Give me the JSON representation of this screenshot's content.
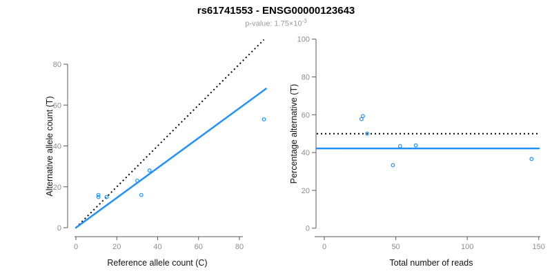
{
  "header": {
    "title": "rs61741553 - ENSG00000123643",
    "subtitle_prefix": "p-value: ",
    "subtitle_value": "1.75×10",
    "subtitle_exponent": "-3"
  },
  "colors": {
    "accent_blue": "#1E90FF",
    "line_black": "#000000",
    "tick_label_gray": "#8c8c8c",
    "axis_gray": "#5a5a5a",
    "subtitle_gray": "#9a9a9a"
  },
  "chart_data": [
    {
      "type": "scatter",
      "name": "allele-counts-scatter",
      "xlabel": "Reference allele count (C)",
      "ylabel": "Alternative allele count (T)",
      "xlim": [
        0,
        93
      ],
      "ylim": [
        0,
        93
      ],
      "xticks": [
        0,
        20,
        40,
        60,
        80
      ],
      "yticks": [
        0,
        20,
        40,
        60,
        80
      ],
      "grid": false,
      "legend": "none",
      "marker": "open-circle",
      "points": [
        [
          11,
          15
        ],
        [
          11,
          16
        ],
        [
          15,
          15
        ],
        [
          30,
          23
        ],
        [
          32,
          16
        ],
        [
          36,
          28
        ],
        [
          92,
          53
        ]
      ],
      "lines": [
        {
          "id": "identity",
          "label": "y = x (expected 50%)",
          "style": "dotted",
          "color": "#000000",
          "x1": 0,
          "y1": 0,
          "x2": 92,
          "y2": 92
        },
        {
          "id": "fit",
          "label": "fitted allelic ratio (slope 0.73)",
          "style": "solid",
          "color": "#1E90FF",
          "x1": 0,
          "y1": 0,
          "x2": 93,
          "y2": 68
        }
      ]
    },
    {
      "type": "scatter",
      "name": "percentage-vs-coverage-scatter",
      "xlabel": "Total number of reads",
      "ylabel": "Percentage alternative (T)",
      "xlim": [
        0,
        150
      ],
      "ylim": [
        0,
        100
      ],
      "xticks": [
        0,
        50,
        100,
        150
      ],
      "yticks": [
        0,
        20,
        40,
        60,
        80,
        100
      ],
      "grid": false,
      "legend": "none",
      "marker": "open-circle",
      "points": [
        [
          26,
          57.7
        ],
        [
          27,
          59.3
        ],
        [
          30,
          50
        ],
        [
          48,
          33.3
        ],
        [
          53,
          43.4
        ],
        [
          64,
          43.8
        ],
        [
          145,
          36.6
        ]
      ],
      "lines": [
        {
          "id": "expected-50pct",
          "label": "expected 50%",
          "style": "dotted",
          "color": "#000000",
          "y": 50
        },
        {
          "id": "mean-alt-fraction",
          "label": "mean alternative fraction 42.2%",
          "style": "solid",
          "color": "#1E90FF",
          "y": 42.2
        }
      ]
    }
  ]
}
